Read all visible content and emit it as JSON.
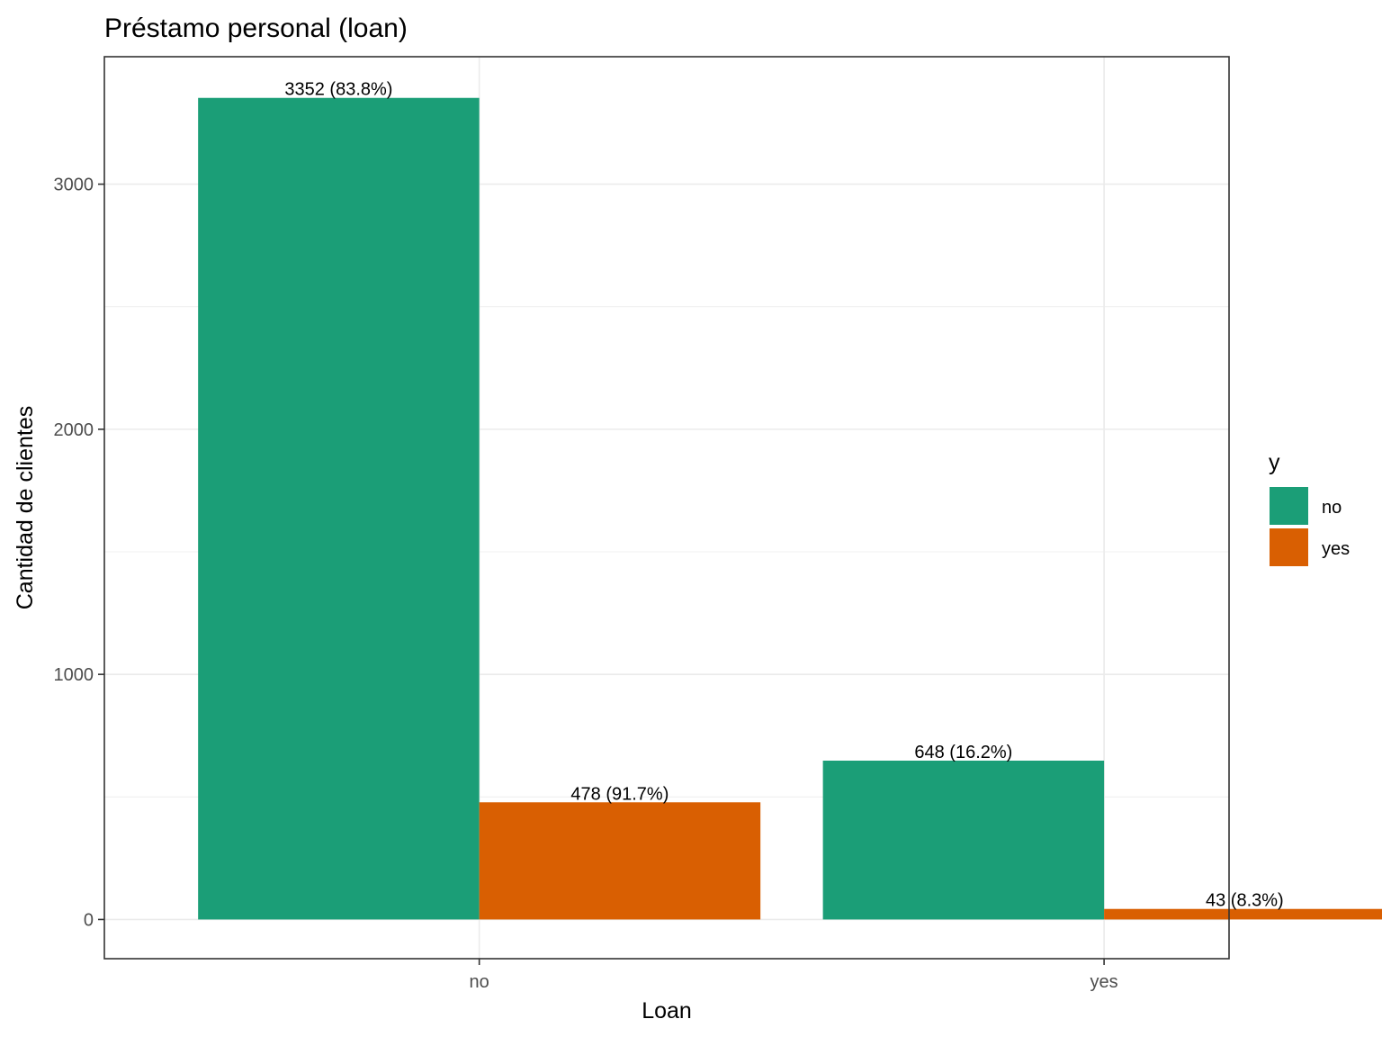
{
  "chart_data": {
    "type": "bar",
    "title": "Préstamo personal (loan)",
    "xlabel": "Loan",
    "ylabel": "Cantidad de clientes",
    "categories": [
      "no",
      "yes"
    ],
    "series": [
      {
        "name": "no",
        "color": "#1B9E77",
        "values": [
          3352,
          648
        ],
        "labels": [
          "3352 (83.8%)",
          "648 (16.2%)"
        ]
      },
      {
        "name": "yes",
        "color": "#D95F02",
        "values": [
          478,
          43
        ],
        "labels": [
          "478 (91.7%)",
          "43 (8.3%)"
        ]
      }
    ],
    "ylim": [
      -160,
      3520
    ],
    "yticks": [
      0,
      1000,
      2000,
      3000
    ],
    "ytick_labels": [
      "0",
      "1000",
      "2000",
      "3000"
    ],
    "yminor": [
      500,
      1500,
      2500
    ],
    "grid": true,
    "legend": {
      "title": "y",
      "position": "right"
    }
  }
}
